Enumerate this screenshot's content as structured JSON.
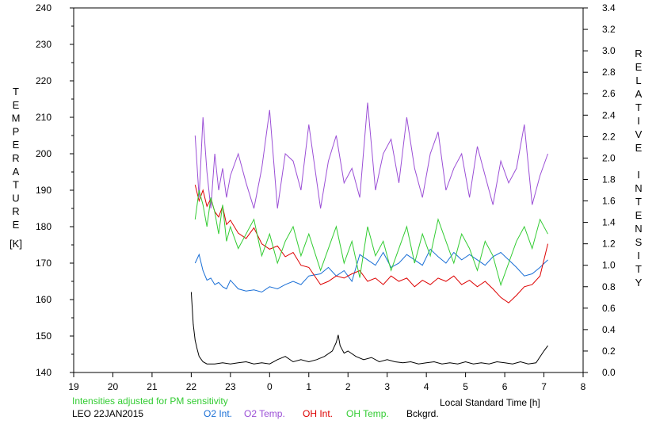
{
  "chart_data": {
    "type": "line",
    "xlabel": "Local Standard Time [h]",
    "ylabel_left": "TEMPERATURE",
    "ylabel_left_unit": "[K]",
    "ylabel_right": "RELATIVE INTENSITY",
    "note": "Intensities adjusted for PM sensitivity",
    "station_date": "LEO 22JAN2015",
    "x_ticks": [
      "19",
      "20",
      "21",
      "22",
      "23",
      "0",
      "1",
      "2",
      "3",
      "4",
      "5",
      "6",
      "7",
      "8"
    ],
    "y_left_ticks": [
      "140",
      "150",
      "160",
      "170",
      "180",
      "190",
      "200",
      "210",
      "220",
      "230",
      "240"
    ],
    "y_right_ticks": [
      "0.0",
      "0.2",
      "0.4",
      "0.6",
      "0.8",
      "1.0",
      "1.2",
      "1.4",
      "1.6",
      "1.8",
      "2.0",
      "2.2",
      "2.4",
      "2.6",
      "2.8",
      "3.0",
      "3.2",
      "3.4"
    ],
    "x_range": [
      19,
      32
    ],
    "y_left_range": [
      140,
      240
    ],
    "y_right_range": [
      0,
      3.4
    ],
    "grid": false,
    "colors": {
      "o2_int": "#1a6fd6",
      "o2_temp": "#9b4fd6",
      "oh_int": "#dd0000",
      "oh_temp": "#33cc33",
      "bckgrd": "#000000",
      "note": "#33cc33"
    },
    "series": [
      {
        "name": "O2 Int.",
        "axis": "right",
        "color": "#1a6fd6",
        "x": [
          22.1,
          22.2,
          22.3,
          22.4,
          22.5,
          22.6,
          22.7,
          22.8,
          22.9,
          23.0,
          23.2,
          23.4,
          23.6,
          23.8,
          24.0,
          24.2,
          24.4,
          24.6,
          24.8,
          25.0,
          25.3,
          25.5,
          25.7,
          25.9,
          26.1,
          26.3,
          26.5,
          26.7,
          26.9,
          27.1,
          27.3,
          27.5,
          27.7,
          27.9,
          28.1,
          28.3,
          28.5,
          28.7,
          28.9,
          29.1,
          29.3,
          29.5,
          29.7,
          29.9,
          30.1,
          30.3,
          30.5,
          30.7,
          30.9,
          31.1
        ],
        "y": [
          1.02,
          1.1,
          0.95,
          0.86,
          0.88,
          0.82,
          0.84,
          0.8,
          0.78,
          0.86,
          0.78,
          0.76,
          0.77,
          0.75,
          0.8,
          0.78,
          0.82,
          0.85,
          0.82,
          0.9,
          0.92,
          0.98,
          0.9,
          0.95,
          0.85,
          1.1,
          1.05,
          1.0,
          1.12,
          0.98,
          1.02,
          1.1,
          1.05,
          1.0,
          1.15,
          1.08,
          1.02,
          1.12,
          1.05,
          1.1,
          1.05,
          1.0,
          1.08,
          1.12,
          1.05,
          0.98,
          0.9,
          0.92,
          0.98,
          1.05
        ]
      },
      {
        "name": "O2 Temp.",
        "axis": "left",
        "color": "#9b4fd6",
        "x": [
          22.1,
          22.2,
          22.3,
          22.4,
          22.5,
          22.6,
          22.7,
          22.8,
          22.9,
          23.0,
          23.2,
          23.4,
          23.6,
          23.8,
          24.0,
          24.2,
          24.4,
          24.6,
          24.8,
          25.0,
          25.3,
          25.5,
          25.7,
          25.9,
          26.1,
          26.3,
          26.5,
          26.7,
          26.9,
          27.1,
          27.3,
          27.5,
          27.7,
          27.9,
          28.1,
          28.3,
          28.5,
          28.7,
          28.9,
          29.1,
          29.3,
          29.5,
          29.7,
          29.9,
          30.1,
          30.3,
          30.5,
          30.7,
          30.9,
          31.1
        ],
        "y": [
          205,
          188,
          210,
          195,
          185,
          200,
          190,
          196,
          188,
          194,
          200,
          192,
          185,
          196,
          212,
          185,
          200,
          198,
          190,
          208,
          185,
          198,
          205,
          192,
          196,
          188,
          214,
          190,
          200,
          204,
          192,
          210,
          196,
          188,
          200,
          206,
          190,
          196,
          200,
          188,
          202,
          194,
          186,
          198,
          192,
          196,
          208,
          186,
          194,
          200
        ]
      },
      {
        "name": "OH Int.",
        "axis": "right",
        "color": "#dd0000",
        "x": [
          22.1,
          22.2,
          22.3,
          22.4,
          22.5,
          22.6,
          22.7,
          22.8,
          22.9,
          23.0,
          23.2,
          23.4,
          23.6,
          23.8,
          24.0,
          24.2,
          24.4,
          24.6,
          24.8,
          25.0,
          25.3,
          25.5,
          25.7,
          25.9,
          26.1,
          26.3,
          26.5,
          26.7,
          26.9,
          27.1,
          27.3,
          27.5,
          27.7,
          27.9,
          28.1,
          28.3,
          28.5,
          28.7,
          28.9,
          29.1,
          29.3,
          29.5,
          29.7,
          29.9,
          30.1,
          30.3,
          30.5,
          30.7,
          30.9,
          31.1
        ],
        "y": [
          1.75,
          1.6,
          1.7,
          1.55,
          1.62,
          1.5,
          1.45,
          1.55,
          1.38,
          1.42,
          1.3,
          1.25,
          1.35,
          1.2,
          1.15,
          1.18,
          1.08,
          1.12,
          1.0,
          0.98,
          0.82,
          0.85,
          0.9,
          0.88,
          0.92,
          0.95,
          0.85,
          0.88,
          0.82,
          0.9,
          0.85,
          0.88,
          0.8,
          0.86,
          0.82,
          0.88,
          0.85,
          0.9,
          0.82,
          0.86,
          0.8,
          0.85,
          0.78,
          0.7,
          0.65,
          0.72,
          0.8,
          0.82,
          0.9,
          1.2
        ]
      },
      {
        "name": "OH Temp.",
        "axis": "left",
        "color": "#33cc33",
        "x": [
          22.1,
          22.2,
          22.3,
          22.4,
          22.5,
          22.6,
          22.7,
          22.8,
          22.9,
          23.0,
          23.2,
          23.4,
          23.6,
          23.8,
          24.0,
          24.2,
          24.4,
          24.6,
          24.8,
          25.0,
          25.3,
          25.5,
          25.7,
          25.9,
          26.1,
          26.3,
          26.5,
          26.7,
          26.9,
          27.1,
          27.3,
          27.5,
          27.7,
          27.9,
          28.1,
          28.3,
          28.5,
          28.7,
          28.9,
          29.1,
          29.3,
          29.5,
          29.7,
          29.9,
          30.1,
          30.3,
          30.5,
          30.7,
          30.9,
          31.1
        ],
        "y": [
          182,
          190,
          186,
          180,
          188,
          184,
          178,
          186,
          176,
          180,
          174,
          178,
          182,
          172,
          178,
          170,
          176,
          180,
          172,
          178,
          168,
          174,
          180,
          170,
          176,
          166,
          180,
          172,
          176,
          168,
          174,
          180,
          170,
          178,
          172,
          182,
          176,
          170,
          178,
          174,
          168,
          176,
          172,
          164,
          170,
          176,
          180,
          174,
          182,
          178
        ]
      },
      {
        "name": "Bckgrd.",
        "axis": "right",
        "color": "#000000",
        "x": [
          22.0,
          22.05,
          22.1,
          22.15,
          22.2,
          22.3,
          22.4,
          22.6,
          22.8,
          23.0,
          23.2,
          23.4,
          23.6,
          23.8,
          24.0,
          24.2,
          24.4,
          24.6,
          24.8,
          25.0,
          25.2,
          25.4,
          25.6,
          25.7,
          25.75,
          25.8,
          25.9,
          26.0,
          26.2,
          26.4,
          26.6,
          26.8,
          27.0,
          27.2,
          27.4,
          27.6,
          27.8,
          28.0,
          28.2,
          28.4,
          28.6,
          28.8,
          29.0,
          29.2,
          29.4,
          29.6,
          29.8,
          30.0,
          30.2,
          30.4,
          30.6,
          30.8,
          31.0,
          31.1
        ],
        "y": [
          0.75,
          0.45,
          0.3,
          0.22,
          0.15,
          0.1,
          0.08,
          0.08,
          0.09,
          0.08,
          0.09,
          0.1,
          0.08,
          0.09,
          0.08,
          0.12,
          0.15,
          0.1,
          0.12,
          0.1,
          0.12,
          0.15,
          0.2,
          0.28,
          0.35,
          0.25,
          0.18,
          0.2,
          0.15,
          0.12,
          0.14,
          0.1,
          0.12,
          0.1,
          0.09,
          0.1,
          0.08,
          0.09,
          0.1,
          0.08,
          0.09,
          0.08,
          0.1,
          0.08,
          0.09,
          0.08,
          0.1,
          0.09,
          0.08,
          0.1,
          0.08,
          0.09,
          0.2,
          0.25
        ]
      }
    ]
  }
}
